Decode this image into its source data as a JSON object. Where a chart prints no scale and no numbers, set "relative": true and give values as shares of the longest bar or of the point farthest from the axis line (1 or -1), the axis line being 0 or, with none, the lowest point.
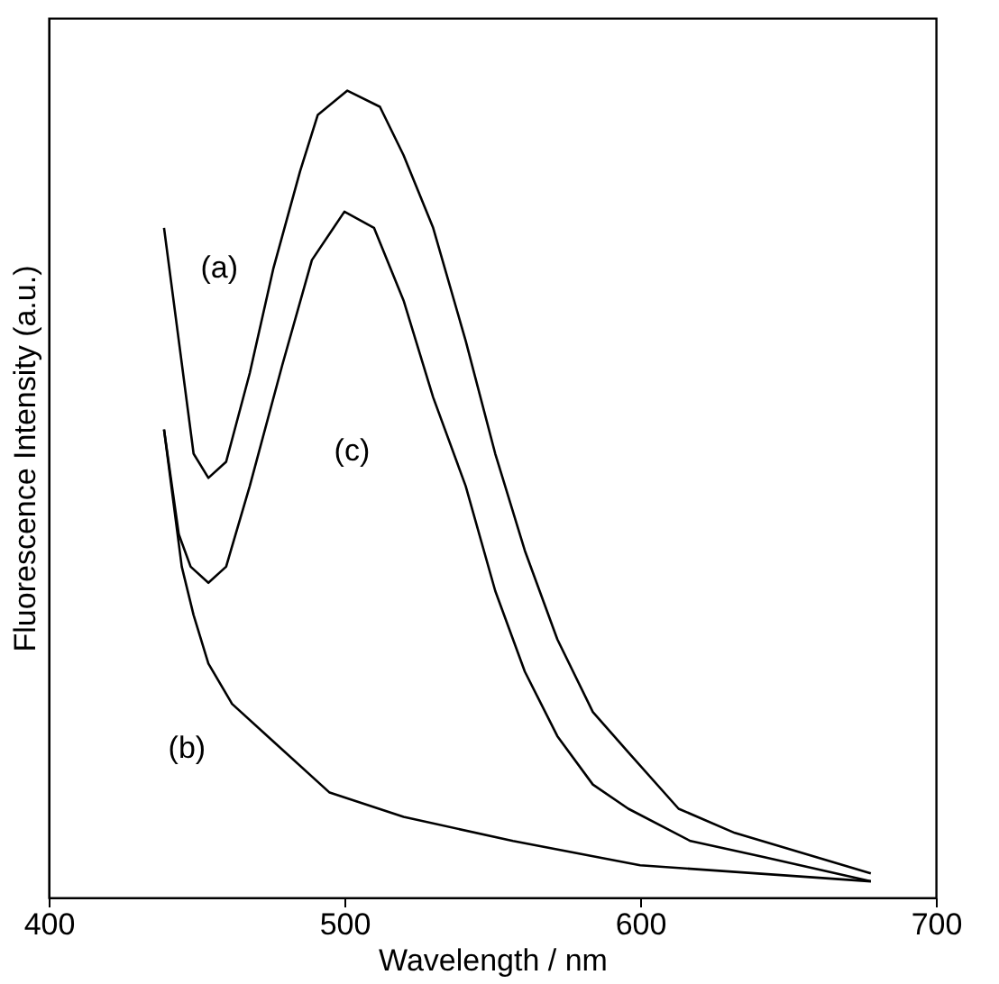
{
  "chart_data": {
    "type": "line",
    "relative": true,
    "xlabel": "Wavelength / nm",
    "ylabel": "Fluorescence Intensity (a.u.)",
    "xlim": [
      400,
      700
    ],
    "xticks": [
      400,
      500,
      600,
      700
    ],
    "grid": false,
    "line_style": "solid",
    "marker": "none",
    "series": [
      {
        "name": "(a)",
        "color": "#000000",
        "x": [
          439,
          444,
          449,
          454,
          460,
          468,
          476,
          485,
          491,
          501,
          512,
          520,
          530,
          541,
          551,
          561,
          572,
          584,
          596,
          613,
          632,
          678
        ],
        "values": [
          0.83,
          0.69,
          0.55,
          0.52,
          0.54,
          0.65,
          0.78,
          0.9,
          0.97,
          1.0,
          0.98,
          0.92,
          0.83,
          0.69,
          0.55,
          0.43,
          0.32,
          0.23,
          0.18,
          0.11,
          0.08,
          0.03
        ]
      },
      {
        "name": "(b)",
        "color": "#000000",
        "x": [
          439,
          445,
          449,
          454,
          462,
          474,
          495,
          520,
          557,
          600,
          678
        ],
        "values": [
          0.58,
          0.41,
          0.35,
          0.29,
          0.24,
          0.2,
          0.13,
          0.1,
          0.07,
          0.04,
          0.02
        ]
      },
      {
        "name": "(c)",
        "color": "#000000",
        "x": [
          439,
          444,
          448,
          454,
          460,
          468,
          479,
          489,
          500,
          510,
          520,
          530,
          541,
          551,
          561,
          572,
          584,
          596,
          617,
          642,
          678
        ],
        "values": [
          0.58,
          0.45,
          0.41,
          0.39,
          0.41,
          0.51,
          0.66,
          0.79,
          0.85,
          0.83,
          0.74,
          0.62,
          0.51,
          0.38,
          0.28,
          0.2,
          0.14,
          0.11,
          0.07,
          0.05,
          0.02
        ]
      }
    ]
  }
}
